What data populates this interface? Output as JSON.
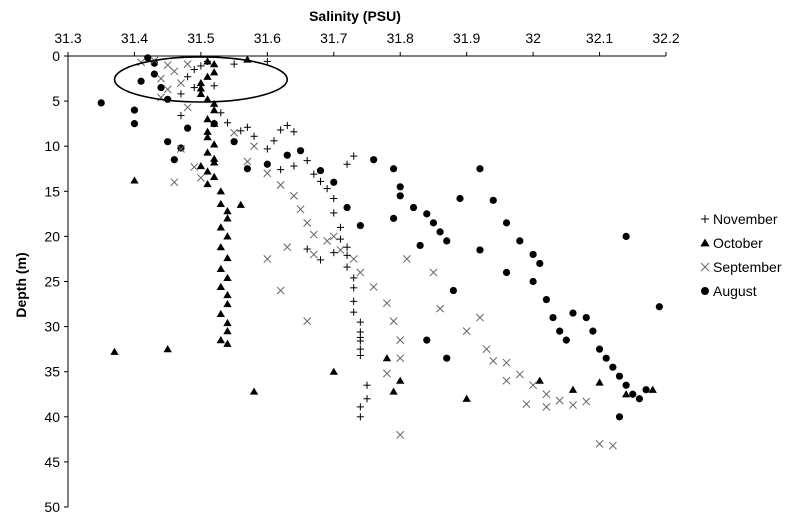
{
  "chart_data": {
    "type": "scatter",
    "xlabel": "Salinity (PSU)",
    "ylabel": "Depth (m)",
    "xlim": [
      31.3,
      32.2
    ],
    "ylim": [
      0,
      50
    ],
    "y_inverted": true,
    "x_axis_position": "top",
    "grid": false,
    "legend_position": "right",
    "x_ticks": [
      "31.3",
      "31.4",
      "31.5",
      "31.6",
      "31.7",
      "31.8",
      "31.9",
      "32",
      "32.1",
      "32.2"
    ],
    "y_ticks": [
      "0",
      "5",
      "10",
      "15",
      "20",
      "25",
      "30",
      "35",
      "40",
      "45",
      "50"
    ],
    "annotation": {
      "shape": "ellipse",
      "center": [
        31.5,
        2.6
      ],
      "radii": [
        0.13,
        2.5
      ]
    },
    "series": [
      {
        "name": "November",
        "marker": "plus",
        "points": [
          [
            31.47,
            4.2
          ],
          [
            31.47,
            6.6
          ],
          [
            31.48,
            2.3
          ],
          [
            31.49,
            1.5
          ],
          [
            31.49,
            3.5
          ],
          [
            31.5,
            1.1
          ],
          [
            31.51,
            0.6
          ],
          [
            31.52,
            3.3
          ],
          [
            31.55,
            0.9
          ],
          [
            31.6,
            0.6
          ],
          [
            31.53,
            6.3
          ],
          [
            31.54,
            7.4
          ],
          [
            31.56,
            8.3
          ],
          [
            31.57,
            7.9
          ],
          [
            31.58,
            8.9
          ],
          [
            31.6,
            10.3
          ],
          [
            31.61,
            9.4
          ],
          [
            31.62,
            8.2
          ],
          [
            31.63,
            7.7
          ],
          [
            31.64,
            8.4
          ],
          [
            31.62,
            12.6
          ],
          [
            31.64,
            12.2
          ],
          [
            31.66,
            11.6
          ],
          [
            31.67,
            13.1
          ],
          [
            31.68,
            13.9
          ],
          [
            31.69,
            14.7
          ],
          [
            31.7,
            15.8
          ],
          [
            31.7,
            17.4
          ],
          [
            31.71,
            19.0
          ],
          [
            31.71,
            20.3
          ],
          [
            31.72,
            21.2
          ],
          [
            31.72,
            22.1
          ],
          [
            31.72,
            23.4
          ],
          [
            31.73,
            24.6
          ],
          [
            31.73,
            25.7
          ],
          [
            31.73,
            27.2
          ],
          [
            31.73,
            28.4
          ],
          [
            31.74,
            29.5
          ],
          [
            31.74,
            30.6
          ],
          [
            31.74,
            31.6
          ],
          [
            31.74,
            32.5
          ],
          [
            31.74,
            33.2
          ],
          [
            31.75,
            36.5
          ],
          [
            31.75,
            38.0
          ],
          [
            31.74,
            38.9
          ],
          [
            31.74,
            40.0
          ],
          [
            31.72,
            12.0
          ],
          [
            31.73,
            11.1
          ],
          [
            31.7,
            21.8
          ],
          [
            31.68,
            22.6
          ],
          [
            31.66,
            21.4
          ],
          [
            31.74,
            31.2
          ]
        ]
      },
      {
        "name": "October",
        "marker": "triangle",
        "points": [
          [
            31.51,
            0.6
          ],
          [
            31.52,
            0.9
          ],
          [
            31.52,
            1.8
          ],
          [
            31.51,
            2.3
          ],
          [
            31.5,
            3.0
          ],
          [
            31.5,
            3.6
          ],
          [
            31.5,
            4.2
          ],
          [
            31.51,
            4.8
          ],
          [
            31.52,
            5.3
          ],
          [
            31.52,
            6.0
          ],
          [
            31.51,
            7.0
          ],
          [
            31.52,
            7.5
          ],
          [
            31.51,
            8.4
          ],
          [
            31.51,
            9.0
          ],
          [
            31.52,
            9.8
          ],
          [
            31.51,
            10.7
          ],
          [
            31.52,
            11.4
          ],
          [
            31.5,
            12.2
          ],
          [
            31.51,
            12.8
          ],
          [
            31.52,
            13.4
          ],
          [
            31.51,
            14.2
          ],
          [
            31.53,
            15.0
          ],
          [
            31.53,
            16.4
          ],
          [
            31.54,
            17.2
          ],
          [
            31.54,
            18.0
          ],
          [
            31.53,
            19.0
          ],
          [
            31.54,
            20.0
          ],
          [
            31.53,
            21.2
          ],
          [
            31.54,
            22.4
          ],
          [
            31.53,
            23.6
          ],
          [
            31.54,
            24.6
          ],
          [
            31.53,
            25.6
          ],
          [
            31.54,
            26.5
          ],
          [
            31.54,
            27.5
          ],
          [
            31.53,
            28.6
          ],
          [
            31.54,
            29.6
          ],
          [
            31.54,
            30.5
          ],
          [
            31.53,
            31.5
          ],
          [
            31.54,
            31.9
          ],
          [
            31.57,
            0.4
          ],
          [
            31.4,
            13.8
          ],
          [
            31.37,
            32.8
          ],
          [
            31.45,
            32.5
          ],
          [
            31.58,
            37.2
          ],
          [
            31.7,
            35.0
          ],
          [
            31.78,
            33.5
          ],
          [
            31.79,
            37.2
          ],
          [
            31.8,
            36.0
          ],
          [
            31.9,
            38.0
          ],
          [
            32.06,
            37.0
          ],
          [
            32.1,
            36.2
          ],
          [
            32.14,
            37.5
          ],
          [
            32.18,
            37.0
          ],
          [
            32.01,
            36.0
          ],
          [
            31.56,
            16.5
          ],
          [
            31.52,
            11.8
          ]
        ]
      },
      {
        "name": "September",
        "marker": "x",
        "points": [
          [
            31.41,
            0.7
          ],
          [
            31.43,
            0.5
          ],
          [
            31.45,
            1.0
          ],
          [
            31.46,
            1.7
          ],
          [
            31.44,
            2.5
          ],
          [
            31.47,
            3.0
          ],
          [
            31.45,
            3.7
          ],
          [
            31.48,
            0.9
          ],
          [
            31.44,
            4.6
          ],
          [
            31.48,
            5.7
          ],
          [
            31.47,
            10.3
          ],
          [
            31.49,
            12.3
          ],
          [
            31.5,
            13.5
          ],
          [
            31.46,
            14.0
          ],
          [
            31.55,
            8.5
          ],
          [
            31.58,
            10.0
          ],
          [
            31.57,
            11.7
          ],
          [
            31.6,
            13.0
          ],
          [
            31.62,
            14.3
          ],
          [
            31.64,
            15.5
          ],
          [
            31.65,
            17.0
          ],
          [
            31.66,
            18.5
          ],
          [
            31.67,
            19.8
          ],
          [
            31.69,
            20.5
          ],
          [
            31.71,
            21.5
          ],
          [
            31.73,
            22.5
          ],
          [
            31.74,
            24.0
          ],
          [
            31.76,
            25.6
          ],
          [
            31.78,
            27.4
          ],
          [
            31.79,
            29.4
          ],
          [
            31.8,
            31.5
          ],
          [
            31.8,
            33.5
          ],
          [
            31.78,
            35.2
          ],
          [
            31.8,
            42.0
          ],
          [
            31.86,
            28.0
          ],
          [
            31.9,
            30.5
          ],
          [
            31.93,
            32.5
          ],
          [
            31.96,
            34.0
          ],
          [
            31.98,
            35.3
          ],
          [
            32.0,
            36.5
          ],
          [
            32.02,
            37.5
          ],
          [
            32.04,
            38.2
          ],
          [
            32.06,
            38.7
          ],
          [
            32.08,
            38.3
          ],
          [
            32.1,
            43.0
          ],
          [
            32.12,
            43.2
          ],
          [
            31.94,
            33.8
          ],
          [
            31.96,
            36.0
          ],
          [
            31.99,
            38.6
          ],
          [
            32.02,
            38.9
          ],
          [
            31.62,
            26.0
          ],
          [
            31.66,
            29.4
          ],
          [
            31.6,
            22.5
          ],
          [
            31.63,
            21.2
          ],
          [
            31.67,
            22.0
          ],
          [
            31.7,
            20.0
          ],
          [
            31.81,
            22.5
          ],
          [
            31.85,
            24.0
          ],
          [
            31.92,
            29.0
          ]
        ]
      },
      {
        "name": "August",
        "marker": "circle",
        "points": [
          [
            31.35,
            5.2
          ],
          [
            31.4,
            6.0
          ],
          [
            31.4,
            7.5
          ],
          [
            31.41,
            2.8
          ],
          [
            31.42,
            0.2
          ],
          [
            31.43,
            0.8
          ],
          [
            31.43,
            2.0
          ],
          [
            31.44,
            3.5
          ],
          [
            31.45,
            4.8
          ],
          [
            31.45,
            9.5
          ],
          [
            31.46,
            11.5
          ],
          [
            31.47,
            10.2
          ],
          [
            31.48,
            8.0
          ],
          [
            31.52,
            7.5
          ],
          [
            31.55,
            9.5
          ],
          [
            31.57,
            12.5
          ],
          [
            31.6,
            12.0
          ],
          [
            31.63,
            11.0
          ],
          [
            31.65,
            10.5
          ],
          [
            31.68,
            12.7
          ],
          [
            31.7,
            14.0
          ],
          [
            31.72,
            16.8
          ],
          [
            31.74,
            18.8
          ],
          [
            31.76,
            11.5
          ],
          [
            31.79,
            12.5
          ],
          [
            31.8,
            14.5
          ],
          [
            31.8,
            15.5
          ],
          [
            31.82,
            16.8
          ],
          [
            31.84,
            17.5
          ],
          [
            31.85,
            18.5
          ],
          [
            31.86,
            19.5
          ],
          [
            31.87,
            20.5
          ],
          [
            31.89,
            15.8
          ],
          [
            31.92,
            12.5
          ],
          [
            31.94,
            16.0
          ],
          [
            31.96,
            18.5
          ],
          [
            31.98,
            20.5
          ],
          [
            32.0,
            22.0
          ],
          [
            32.01,
            23.0
          ],
          [
            32.0,
            25.0
          ],
          [
            32.02,
            27.0
          ],
          [
            32.03,
            29.0
          ],
          [
            32.04,
            30.5
          ],
          [
            32.05,
            31.5
          ],
          [
            32.06,
            28.5
          ],
          [
            32.08,
            29.0
          ],
          [
            32.09,
            30.5
          ],
          [
            32.1,
            32.5
          ],
          [
            32.11,
            33.5
          ],
          [
            32.12,
            34.5
          ],
          [
            32.13,
            35.5
          ],
          [
            32.14,
            36.5
          ],
          [
            32.15,
            37.5
          ],
          [
            32.16,
            38.0
          ],
          [
            32.17,
            37.0
          ],
          [
            32.14,
            20.0
          ],
          [
            32.19,
            27.8
          ],
          [
            32.13,
            40.0
          ],
          [
            31.87,
            33.5
          ],
          [
            31.84,
            31.5
          ],
          [
            31.96,
            24.0
          ],
          [
            31.92,
            21.5
          ],
          [
            31.88,
            26.0
          ],
          [
            31.83,
            21.0
          ],
          [
            31.79,
            18.0
          ]
        ]
      }
    ]
  }
}
